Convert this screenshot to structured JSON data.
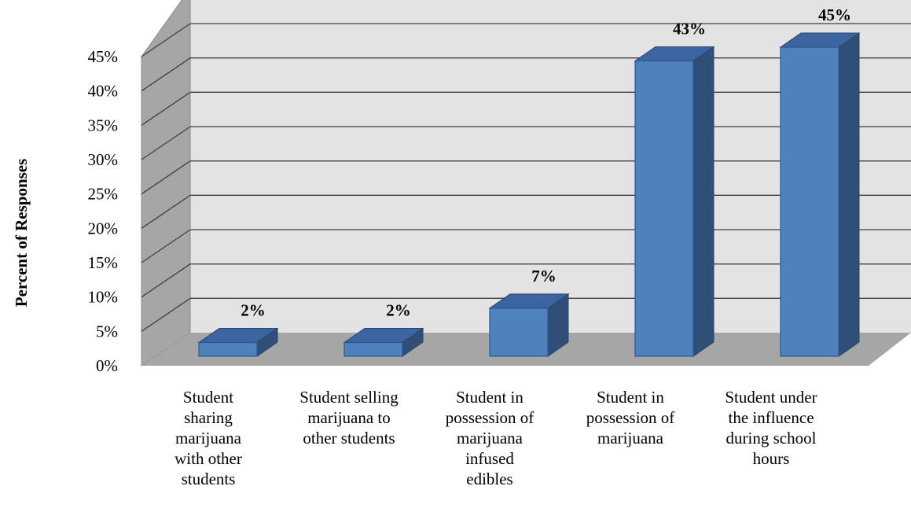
{
  "chart_data": {
    "type": "bar",
    "style": "3d-clustered-column",
    "ylabel": "Percent of Responses",
    "xlabel": "",
    "title": "",
    "ylim": [
      0,
      45
    ],
    "yticks": [
      "0%",
      "5%",
      "10%",
      "15%",
      "20%",
      "25%",
      "30%",
      "35%",
      "40%",
      "45%"
    ],
    "grid": true,
    "legend": "none",
    "categories": [
      "Student sharing marijuana with other students",
      "Student selling marijuana to other students",
      "Student in possession of marijuana infused edibles",
      "Student in possession of marijuana",
      "Student under the influence during school hours"
    ],
    "category_lines": [
      [
        "Student",
        "sharing",
        "marijuana",
        "with other",
        "students"
      ],
      [
        "Student selling",
        "marijuana to",
        "other students"
      ],
      [
        "Student in",
        "possession of",
        "marijuana",
        "infused",
        "edibles"
      ],
      [
        "Student in",
        "possession of",
        "marijuana"
      ],
      [
        "Student under",
        "the influence",
        "during school",
        "hours"
      ]
    ],
    "values": [
      2,
      2,
      7,
      43,
      45
    ],
    "data_labels": [
      "2%",
      "2%",
      "7%",
      "43%",
      "45%"
    ],
    "colors": {
      "bar_front": "#4f81bd",
      "bar_side": "#2f4f78",
      "bar_top": "#3b64a0",
      "back_wall": "#e3e3e3",
      "side_wall": "#a6a6a6",
      "floor": "#a6a6a6",
      "gridline": "#404040"
    }
  }
}
